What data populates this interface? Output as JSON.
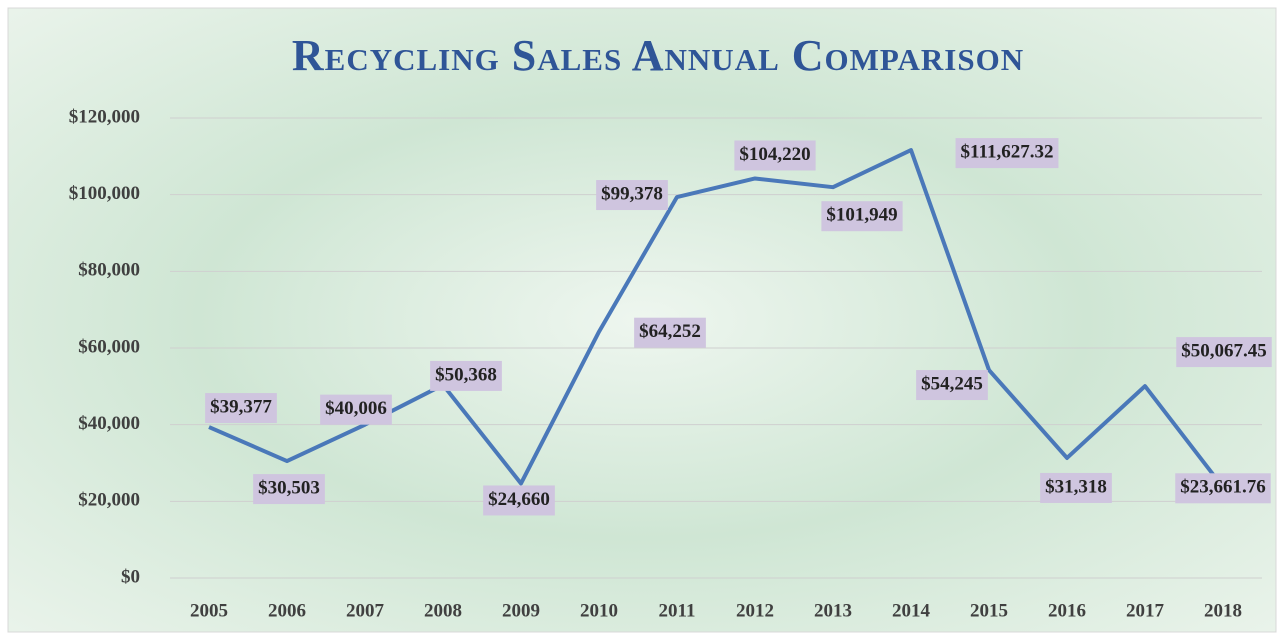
{
  "chart_data": {
    "type": "line",
    "title": "Recycling Sales Annual Comparison",
    "categories": [
      "2005",
      "2006",
      "2007",
      "2008",
      "2009",
      "2010",
      "2011",
      "2012",
      "2013",
      "2014",
      "2015",
      "2016",
      "2017",
      "2018"
    ],
    "series": [
      {
        "color": "#4a78b9",
        "values": [
          39377,
          30503,
          40006,
          50368,
          24660,
          64252,
          99378,
          104220,
          101949,
          111627.32,
          54245,
          31318,
          50067.45,
          23661.76
        ],
        "value_labels": [
          "$39,377",
          "$30,503",
          "$40,006",
          "$50,368",
          "$24,660",
          "$64,252",
          "$99,378",
          "$104,220",
          "$101,949",
          "$111,627.32",
          "$54,245",
          "$31,318",
          "$50,067.45",
          "$23,661.76"
        ]
      }
    ],
    "ylim": [
      0,
      120000
    ],
    "yticks": [
      {
        "value": 0,
        "label": "$0"
      },
      {
        "value": 20000,
        "label": "$20,000"
      },
      {
        "value": 40000,
        "label": "$40,000"
      },
      {
        "value": 60000,
        "label": "$60,000"
      },
      {
        "value": 80000,
        "label": "$80,000"
      },
      {
        "value": 100000,
        "label": "$100,000"
      },
      {
        "value": 120000,
        "label": "$120,000"
      }
    ],
    "grid": true
  }
}
